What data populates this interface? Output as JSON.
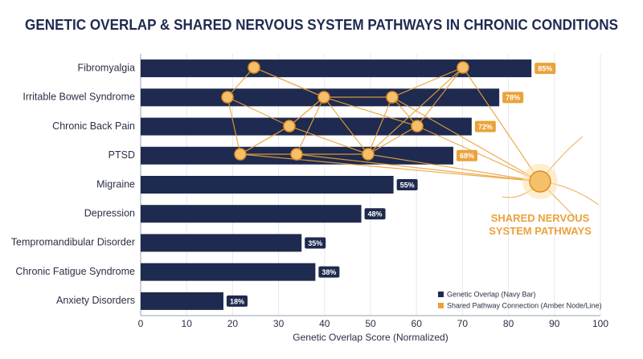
{
  "chart_data": {
    "type": "hbar",
    "title": "GENETIC OVERLAP & SHARED NERVOUS SYSTEM PATHWAYS IN CHRONIC CONDITIONS",
    "categories": [
      "Fibromyalgia",
      "Irritable Bowel Syndrome",
      "Chronic Back Pain",
      "PTSD",
      "Migraine",
      "Depression",
      "Tempromandibular Disorder",
      "Chronic Fatigue Syndrome",
      "Anxiety Disorders"
    ],
    "series": [
      {
        "name": "Genetic Overlap (Navy Bar)",
        "color": "#1e2a4f",
        "values": [
          85,
          78,
          72,
          68,
          55,
          48,
          35,
          38,
          18
        ],
        "value_labels": [
          "85%",
          "78%",
          "72%",
          "68%",
          "55%",
          "48%",
          "35%",
          "38%",
          "18%"
        ]
      }
    ],
    "pathway_legend": {
      "name": "Shared Pathway Connection (Amber Node/Line)",
      "color": "#eba23a"
    },
    "annotation": "SHARED NERVOUS SYSTEM PATHWAYS",
    "x_label": "Genetic Overlap Score (Normalized)",
    "xlim": [
      0,
      100
    ],
    "xticks": [
      0,
      10,
      20,
      30,
      40,
      50,
      60,
      70,
      80,
      90,
      100
    ],
    "grid": true
  }
}
